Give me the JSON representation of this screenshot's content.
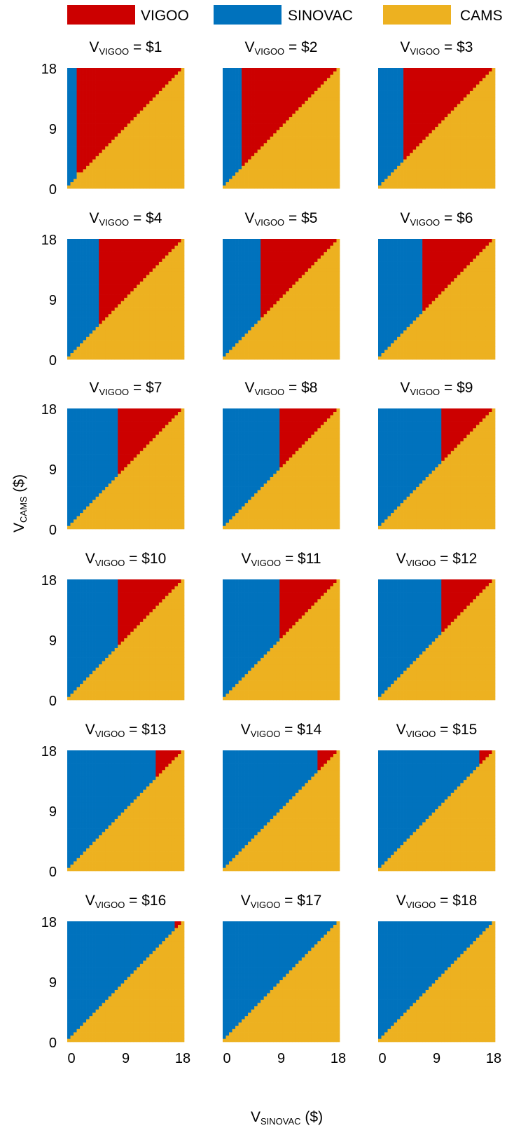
{
  "legend": [
    {
      "label": "VIGOO",
      "color": "#CC0000"
    },
    {
      "label": "SINOVAC",
      "color": "#0072BD"
    },
    {
      "label": "CAMS",
      "color": "#EDB120"
    }
  ],
  "xlabel": {
    "main": "V",
    "sub": "SINOVAC",
    "unit": " ($)"
  },
  "ylabel": {
    "main": "V",
    "sub": "CAMS",
    "unit": " ($)"
  },
  "chart_data": {
    "type": "heatmap",
    "description_of_regions": "winner among VIGOO, SINOVAC, CAMS",
    "x_ticks": [
      "0",
      "9",
      "18"
    ],
    "y_ticks": [
      "0",
      "9",
      "18"
    ],
    "xlim": [
      0,
      18
    ],
    "ylim": [
      0,
      18
    ],
    "title_main": "V",
    "title_sub": "VIGOO",
    "panels": [
      {
        "vvigoo": 1,
        "title_value": " = $1",
        "sinovac_max_x": 1.0,
        "cams_max_y": 2.0
      },
      {
        "vvigoo": 2,
        "title_value": " = $2",
        "sinovac_max_x": 2.5,
        "cams_max_y": 3.0
      },
      {
        "vvigoo": 3,
        "title_value": " = $3",
        "sinovac_max_x": 3.5,
        "cams_max_y": 4.0
      },
      {
        "vvigoo": 4,
        "title_value": " = $4",
        "sinovac_max_x": 4.5,
        "cams_max_y": 5.0
      },
      {
        "vvigoo": 5,
        "title_value": " = $5",
        "sinovac_max_x": 5.5,
        "cams_max_y": 6.0
      },
      {
        "vvigoo": 6,
        "title_value": " = $6",
        "sinovac_max_x": 6.5,
        "cams_max_y": 7.0
      },
      {
        "vvigoo": 7,
        "title_value": " = $7",
        "sinovac_max_x": 7.5,
        "cams_max_y": 8.0
      },
      {
        "vvigoo": 8,
        "title_value": " = $8",
        "sinovac_max_x": 8.5,
        "cams_max_y": 9.0
      },
      {
        "vvigoo": 9,
        "title_value": " = $9",
        "sinovac_max_x": 9.5,
        "cams_max_y": 10.0
      },
      {
        "vvigoo": 10,
        "title_value": " = $10",
        "sinovac_max_x": 7.5,
        "cams_max_y": 8.0
      },
      {
        "vvigoo": 11,
        "title_value": " = $11",
        "sinovac_max_x": 8.5,
        "cams_max_y": 9.0
      },
      {
        "vvigoo": 12,
        "title_value": " = $12",
        "sinovac_max_x": 9.5,
        "cams_max_y": 10.0
      },
      {
        "vvigoo": 13,
        "title_value": " = $13",
        "sinovac_max_x": 13.5,
        "cams_max_y": 14.0
      },
      {
        "vvigoo": 14,
        "title_value": " = $14",
        "sinovac_max_x": 14.5,
        "cams_max_y": 15.0
      },
      {
        "vvigoo": 15,
        "title_value": " = $15",
        "sinovac_max_x": 15.5,
        "cams_max_y": 16.0
      },
      {
        "vvigoo": 16,
        "title_value": " = $16",
        "sinovac_max_x": 16.5,
        "cams_max_y": 17.0
      },
      {
        "vvigoo": 17,
        "title_value": " = $17",
        "sinovac_max_x": 18.0,
        "cams_max_y": 18.0
      },
      {
        "vvigoo": 18,
        "title_value": " = $18",
        "sinovac_max_x": 18.0,
        "cams_max_y": 18.0
      }
    ]
  }
}
